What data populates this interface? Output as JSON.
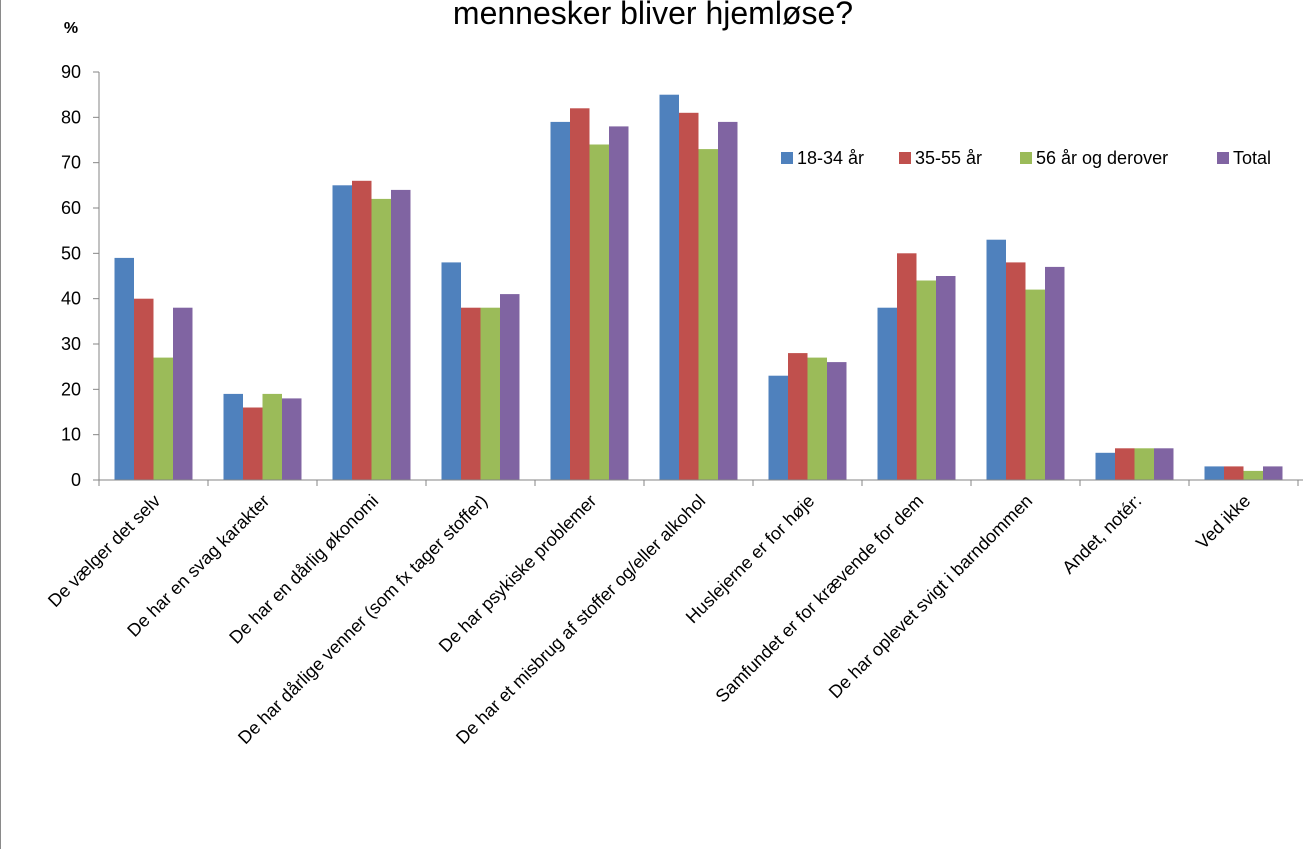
{
  "chart_data": {
    "type": "bar",
    "title": "mennesker bliver hjemløse?",
    "unit_label": "%",
    "ylim": [
      0,
      90
    ],
    "yticks": [
      0,
      10,
      20,
      30,
      40,
      50,
      60,
      70,
      80,
      90
    ],
    "grid": false,
    "legend_position": "top-right",
    "categories": [
      "De vælger det selv",
      "De har en svag karakter",
      "De har en dårlig økonomi",
      "De har dårlige venner (som fx tager stoffer)",
      "De har psykiske problemer",
      "De har et misbrug af stoffer og/eller alkohol",
      "Huslejerne er for høje",
      "Samfundet er for krævende for dem",
      "De har oplevet svigt i barndommen",
      "Andet, notér:",
      "Ved ikke"
    ],
    "series": [
      {
        "name": "18-34 år",
        "color": "#4F81BD",
        "values": [
          49,
          19,
          65,
          48,
          79,
          85,
          23,
          38,
          53,
          6,
          3
        ]
      },
      {
        "name": "35-55 år",
        "color": "#C0504D",
        "values": [
          40,
          16,
          66,
          38,
          82,
          81,
          28,
          50,
          48,
          7,
          3
        ]
      },
      {
        "name": "56 år og derover",
        "color": "#9BBB59",
        "values": [
          27,
          19,
          62,
          38,
          74,
          73,
          27,
          44,
          42,
          7,
          2
        ]
      },
      {
        "name": "Total",
        "color": "#8064A2",
        "values": [
          38,
          18,
          64,
          41,
          78,
          79,
          26,
          45,
          47,
          7,
          3
        ]
      }
    ]
  }
}
